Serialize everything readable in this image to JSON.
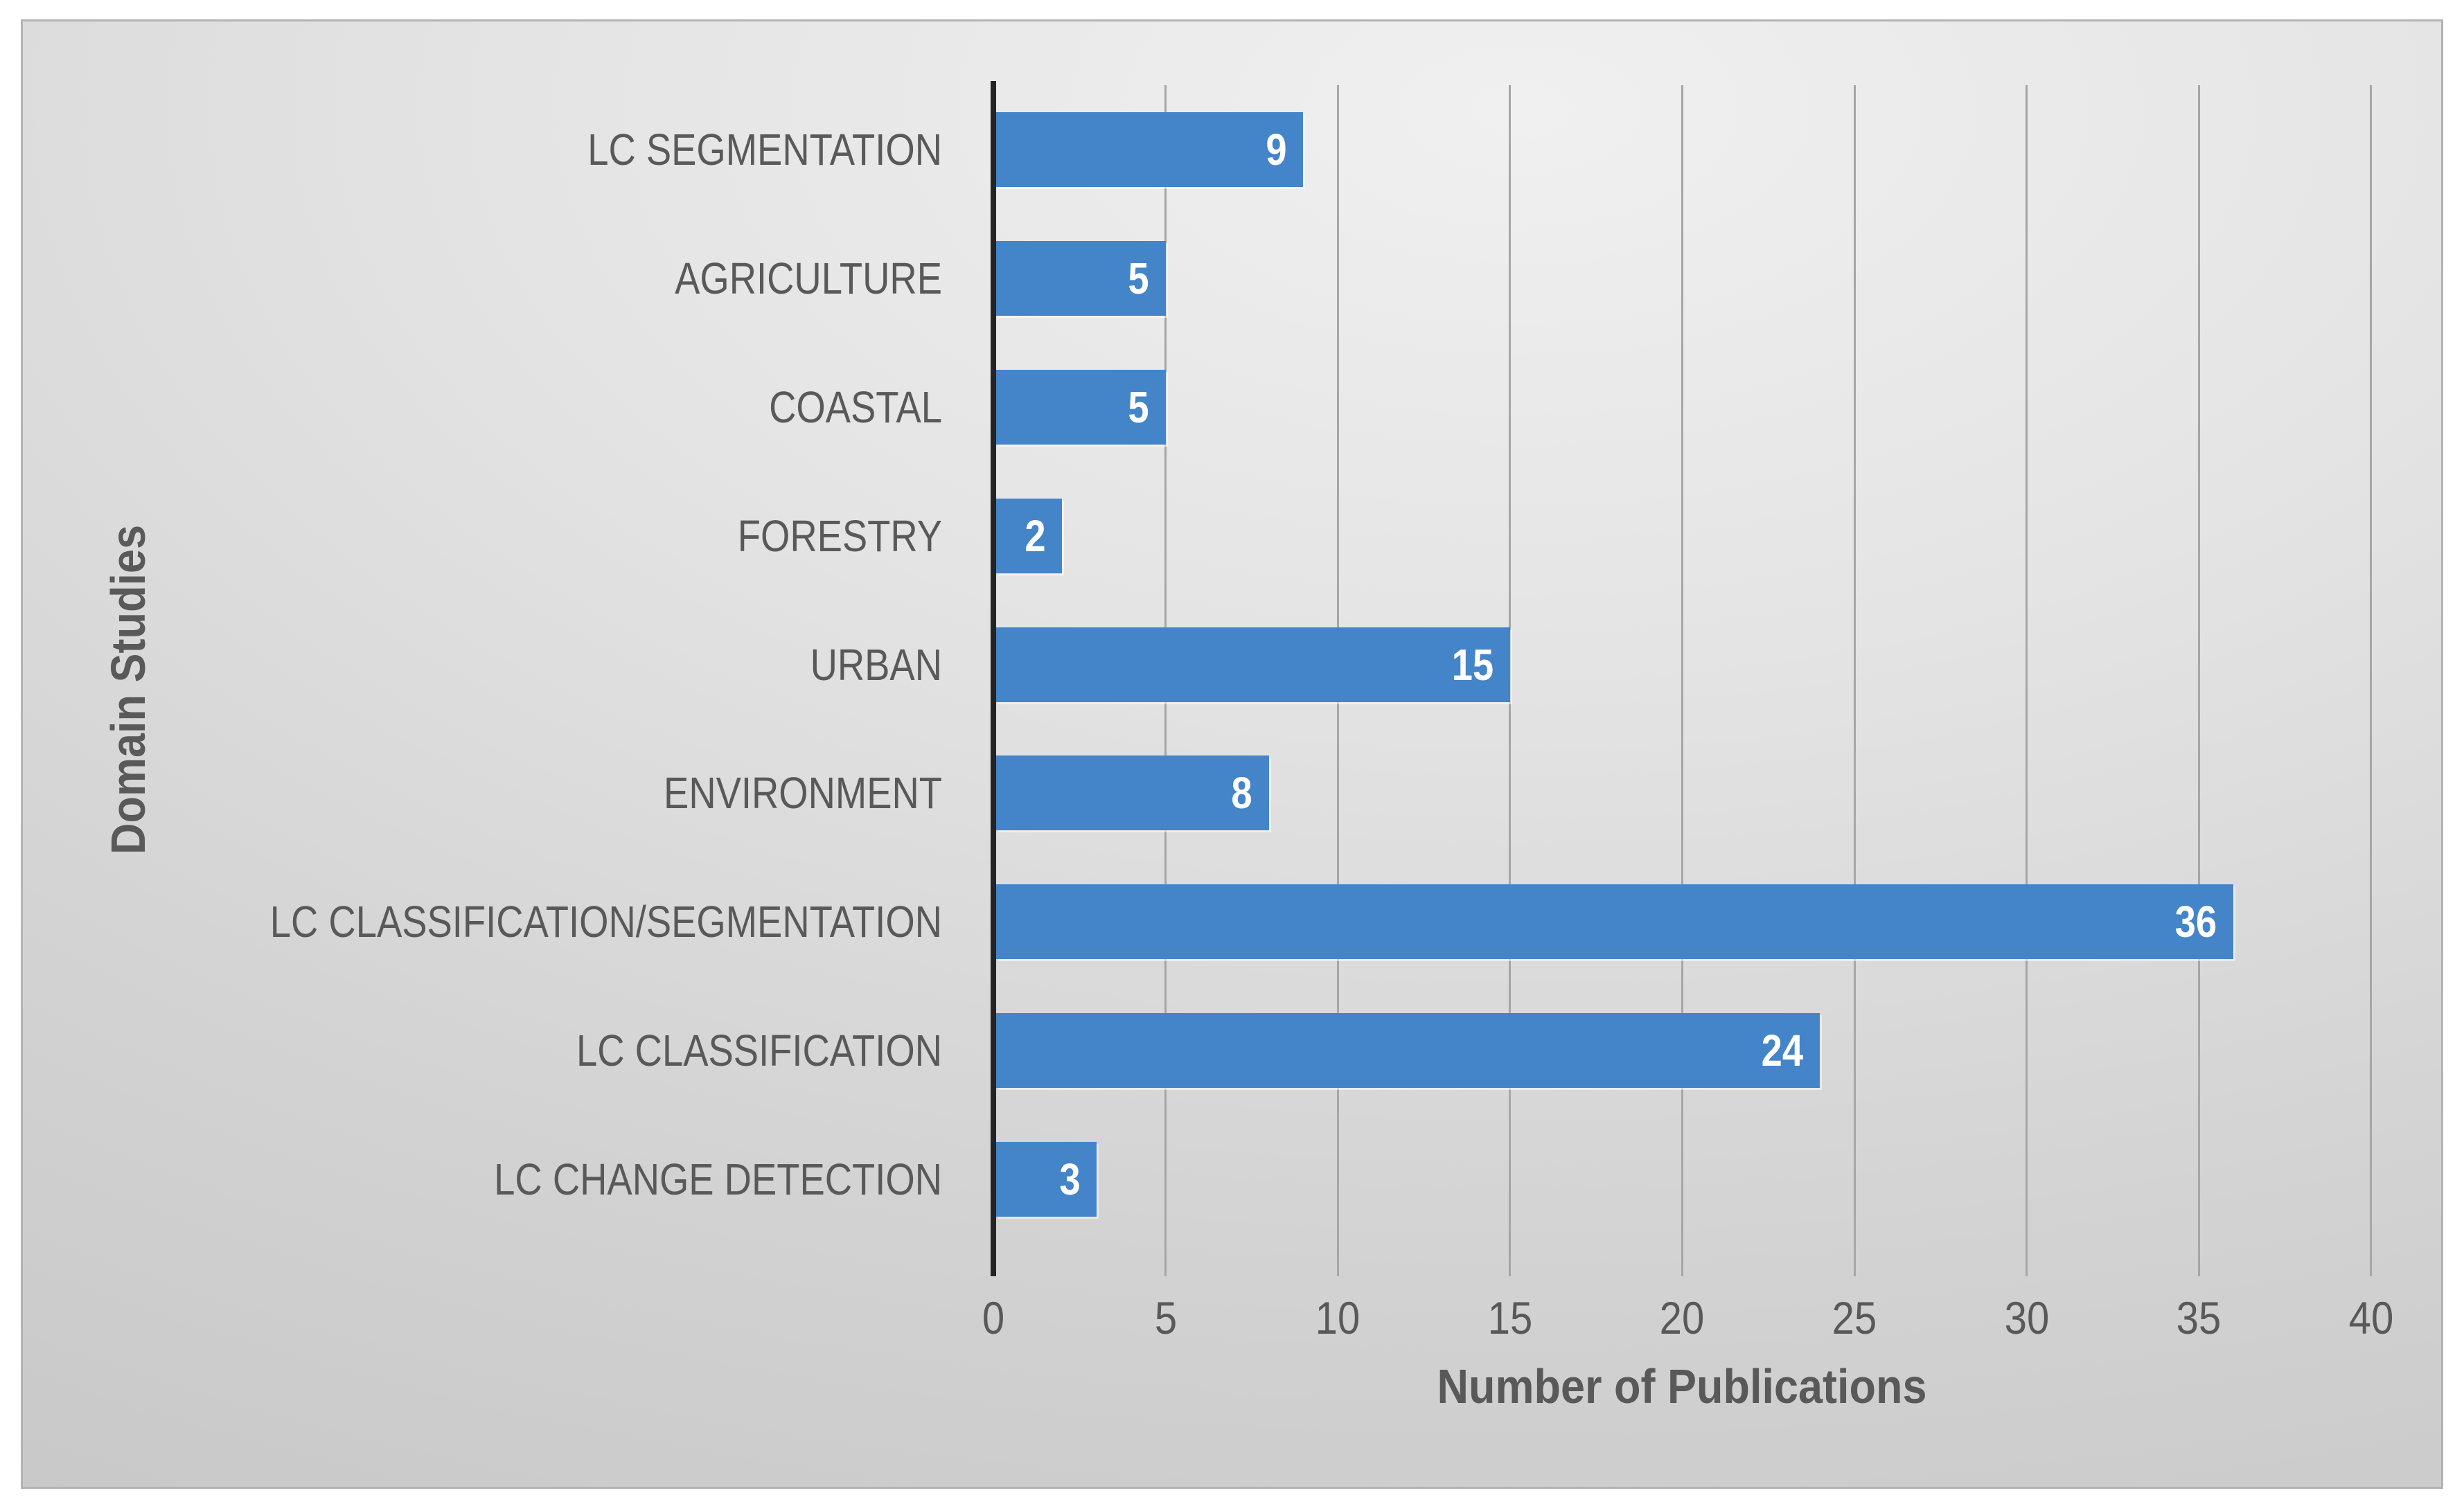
{
  "figure": {
    "page_background": "#ffffff",
    "chart_background_light": "#e8e8e8",
    "chart_background_dark": "#c3c3c3",
    "gridline_color": "#a6a6a6",
    "category_axis_color": "#242424"
  },
  "chart_data": {
    "type": "bar",
    "orientation": "horizontal",
    "categories": [
      "LC SEGMENTATION",
      "AGRICULTURE",
      "COASTAL",
      "FORESTRY",
      "URBAN",
      "ENVIRONMENT",
      "LC CLASSIFICATION/SEGMENTATION",
      "LC CLASSIFICATION",
      "LC CHANGE DETECTION"
    ],
    "values": [
      9,
      5,
      5,
      2,
      15,
      8,
      36,
      24,
      3
    ],
    "xlabel": "Number of Publications",
    "ylabel": "Domain Studies",
    "xlim": [
      0,
      40
    ],
    "xticks": [
      0,
      5,
      10,
      15,
      20,
      25,
      30,
      35,
      40
    ],
    "grid": "vertical-major-only",
    "legend": "none",
    "data_labels": "inside-end",
    "bar_color": "#4484c9",
    "data_label_color": "#ffffff",
    "axis_text_color": "#595959"
  }
}
